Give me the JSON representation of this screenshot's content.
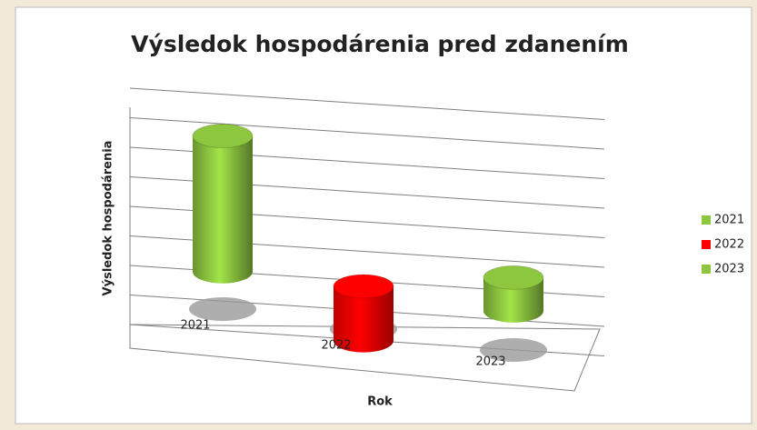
{
  "chart_data": {
    "type": "bar3d",
    "title": "Výsledok hospodárenia pred zdanením",
    "y_label": "Výsledok hospodárenia",
    "x_label": "Rok",
    "categories": [
      "2021",
      "2022",
      "2023"
    ],
    "values": [
      4.5,
      -1.8,
      1.1
    ],
    "colors": [
      "#8dc63f",
      "#ff0000",
      "#8dc63f"
    ],
    "ylim": [
      -2,
      6
    ],
    "yticks": [
      -2,
      -1,
      0,
      1,
      2,
      3,
      4,
      5,
      6
    ],
    "grid": true,
    "legend": "right"
  }
}
